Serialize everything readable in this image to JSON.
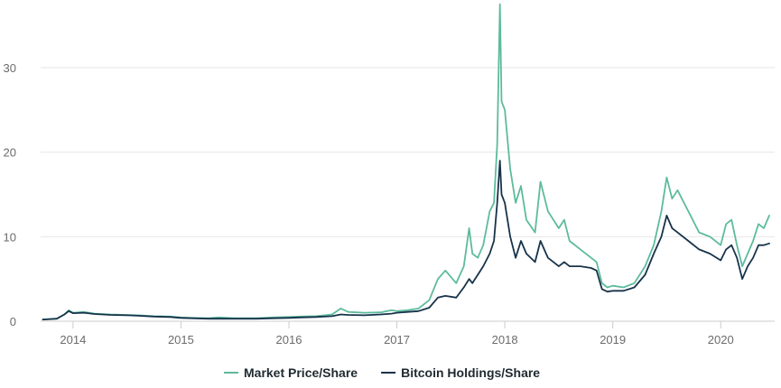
{
  "chart_data": {
    "type": "line",
    "title": "",
    "xlabel": "",
    "ylabel": "",
    "xlim": [
      2013.7,
      2020.5
    ],
    "ylim": [
      0,
      38
    ],
    "x_ticks": [
      {
        "value": 2014,
        "label": "2014"
      },
      {
        "value": 2015,
        "label": "2015"
      },
      {
        "value": 2016,
        "label": "2016"
      },
      {
        "value": 2017,
        "label": "2017"
      },
      {
        "value": 2018,
        "label": "2018"
      },
      {
        "value": 2019,
        "label": "2019"
      },
      {
        "value": 2020,
        "label": "2020"
      }
    ],
    "y_ticks": [
      {
        "value": 0,
        "label": "0"
      },
      {
        "value": 10,
        "label": "10"
      },
      {
        "value": 20,
        "label": "20"
      },
      {
        "value": 30,
        "label": "30"
      }
    ],
    "grid": {
      "horizontal": true,
      "vertical": false
    },
    "legend": {
      "position": "bottom-center"
    },
    "series": [
      {
        "name": "Market Price/Share",
        "color": "#5dbb9d",
        "points": [
          [
            2013.72,
            0.2
          ],
          [
            2013.85,
            0.3
          ],
          [
            2013.92,
            0.8
          ],
          [
            2013.96,
            1.3
          ],
          [
            2014.0,
            1.0
          ],
          [
            2014.1,
            1.1
          ],
          [
            2014.2,
            0.9
          ],
          [
            2014.35,
            0.8
          ],
          [
            2014.5,
            0.75
          ],
          [
            2014.6,
            0.7
          ],
          [
            2014.75,
            0.6
          ],
          [
            2014.9,
            0.55
          ],
          [
            2015.0,
            0.45
          ],
          [
            2015.1,
            0.4
          ],
          [
            2015.25,
            0.35
          ],
          [
            2015.35,
            0.45
          ],
          [
            2015.5,
            0.35
          ],
          [
            2015.7,
            0.35
          ],
          [
            2015.85,
            0.45
          ],
          [
            2016.0,
            0.5
          ],
          [
            2016.1,
            0.55
          ],
          [
            2016.25,
            0.6
          ],
          [
            2016.4,
            0.8
          ],
          [
            2016.48,
            1.5
          ],
          [
            2016.55,
            1.1
          ],
          [
            2016.7,
            1.0
          ],
          [
            2016.85,
            1.05
          ],
          [
            2016.95,
            1.3
          ],
          [
            2017.0,
            1.2
          ],
          [
            2017.1,
            1.3
          ],
          [
            2017.2,
            1.5
          ],
          [
            2017.3,
            2.5
          ],
          [
            2017.38,
            5.0
          ],
          [
            2017.45,
            6.0
          ],
          [
            2017.55,
            4.5
          ],
          [
            2017.62,
            6.5
          ],
          [
            2017.67,
            11.0
          ],
          [
            2017.7,
            8.0
          ],
          [
            2017.75,
            7.5
          ],
          [
            2017.8,
            9.0
          ],
          [
            2017.86,
            13.0
          ],
          [
            2017.9,
            14.0
          ],
          [
            2017.93,
            21.0
          ],
          [
            2017.955,
            37.5
          ],
          [
            2017.97,
            26.0
          ],
          [
            2018.0,
            25.0
          ],
          [
            2018.05,
            18.0
          ],
          [
            2018.1,
            14.0
          ],
          [
            2018.15,
            16.0
          ],
          [
            2018.2,
            12.0
          ],
          [
            2018.28,
            10.5
          ],
          [
            2018.33,
            16.5
          ],
          [
            2018.4,
            13.0
          ],
          [
            2018.5,
            11.0
          ],
          [
            2018.55,
            12.0
          ],
          [
            2018.6,
            9.5
          ],
          [
            2018.7,
            8.5
          ],
          [
            2018.8,
            7.5
          ],
          [
            2018.85,
            7.0
          ],
          [
            2018.9,
            4.5
          ],
          [
            2018.95,
            4.0
          ],
          [
            2019.0,
            4.2
          ],
          [
            2019.1,
            4.0
          ],
          [
            2019.2,
            4.5
          ],
          [
            2019.3,
            6.5
          ],
          [
            2019.38,
            9.0
          ],
          [
            2019.45,
            13.0
          ],
          [
            2019.5,
            17.0
          ],
          [
            2019.55,
            14.5
          ],
          [
            2019.6,
            15.5
          ],
          [
            2019.7,
            13.0
          ],
          [
            2019.8,
            10.5
          ],
          [
            2019.9,
            10.0
          ],
          [
            2020.0,
            9.0
          ],
          [
            2020.05,
            11.5
          ],
          [
            2020.1,
            12.0
          ],
          [
            2020.15,
            9.0
          ],
          [
            2020.2,
            6.5
          ],
          [
            2020.25,
            8.0
          ],
          [
            2020.3,
            9.5
          ],
          [
            2020.35,
            11.5
          ],
          [
            2020.4,
            11.0
          ],
          [
            2020.45,
            12.5
          ]
        ]
      },
      {
        "name": "Bitcoin Holdings/Share",
        "color": "#17334a",
        "points": [
          [
            2013.72,
            0.2
          ],
          [
            2013.85,
            0.3
          ],
          [
            2013.92,
            0.8
          ],
          [
            2013.96,
            1.2
          ],
          [
            2014.0,
            0.95
          ],
          [
            2014.1,
            1.0
          ],
          [
            2014.2,
            0.85
          ],
          [
            2014.35,
            0.75
          ],
          [
            2014.5,
            0.7
          ],
          [
            2014.6,
            0.65
          ],
          [
            2014.75,
            0.55
          ],
          [
            2014.9,
            0.5
          ],
          [
            2015.0,
            0.4
          ],
          [
            2015.1,
            0.35
          ],
          [
            2015.25,
            0.3
          ],
          [
            2015.35,
            0.3
          ],
          [
            2015.5,
            0.3
          ],
          [
            2015.7,
            0.3
          ],
          [
            2015.85,
            0.35
          ],
          [
            2016.0,
            0.4
          ],
          [
            2016.1,
            0.45
          ],
          [
            2016.25,
            0.5
          ],
          [
            2016.4,
            0.6
          ],
          [
            2016.48,
            0.8
          ],
          [
            2016.55,
            0.75
          ],
          [
            2016.7,
            0.7
          ],
          [
            2016.85,
            0.8
          ],
          [
            2016.95,
            0.9
          ],
          [
            2017.0,
            1.0
          ],
          [
            2017.1,
            1.1
          ],
          [
            2017.2,
            1.2
          ],
          [
            2017.3,
            1.6
          ],
          [
            2017.38,
            2.8
          ],
          [
            2017.45,
            3.0
          ],
          [
            2017.55,
            2.8
          ],
          [
            2017.62,
            4.0
          ],
          [
            2017.67,
            5.0
          ],
          [
            2017.7,
            4.5
          ],
          [
            2017.75,
            5.5
          ],
          [
            2017.8,
            6.5
          ],
          [
            2017.86,
            8.0
          ],
          [
            2017.9,
            9.5
          ],
          [
            2017.93,
            14.0
          ],
          [
            2017.955,
            19.0
          ],
          [
            2017.97,
            15.0
          ],
          [
            2018.0,
            14.0
          ],
          [
            2018.05,
            10.0
          ],
          [
            2018.1,
            7.5
          ],
          [
            2018.15,
            9.5
          ],
          [
            2018.2,
            8.0
          ],
          [
            2018.28,
            7.0
          ],
          [
            2018.33,
            9.5
          ],
          [
            2018.4,
            7.5
          ],
          [
            2018.5,
            6.5
          ],
          [
            2018.55,
            7.0
          ],
          [
            2018.6,
            6.5
          ],
          [
            2018.7,
            6.5
          ],
          [
            2018.8,
            6.3
          ],
          [
            2018.85,
            6.0
          ],
          [
            2018.9,
            3.8
          ],
          [
            2018.95,
            3.5
          ],
          [
            2019.0,
            3.6
          ],
          [
            2019.1,
            3.6
          ],
          [
            2019.2,
            4.0
          ],
          [
            2019.3,
            5.5
          ],
          [
            2019.38,
            8.0
          ],
          [
            2019.45,
            10.0
          ],
          [
            2019.5,
            12.5
          ],
          [
            2019.55,
            11.0
          ],
          [
            2019.6,
            10.5
          ],
          [
            2019.7,
            9.5
          ],
          [
            2019.8,
            8.5
          ],
          [
            2019.9,
            8.0
          ],
          [
            2020.0,
            7.2
          ],
          [
            2020.05,
            8.5
          ],
          [
            2020.1,
            9.0
          ],
          [
            2020.15,
            7.5
          ],
          [
            2020.2,
            5.0
          ],
          [
            2020.25,
            6.5
          ],
          [
            2020.3,
            7.5
          ],
          [
            2020.35,
            9.0
          ],
          [
            2020.4,
            9.0
          ],
          [
            2020.45,
            9.2
          ]
        ]
      }
    ]
  }
}
